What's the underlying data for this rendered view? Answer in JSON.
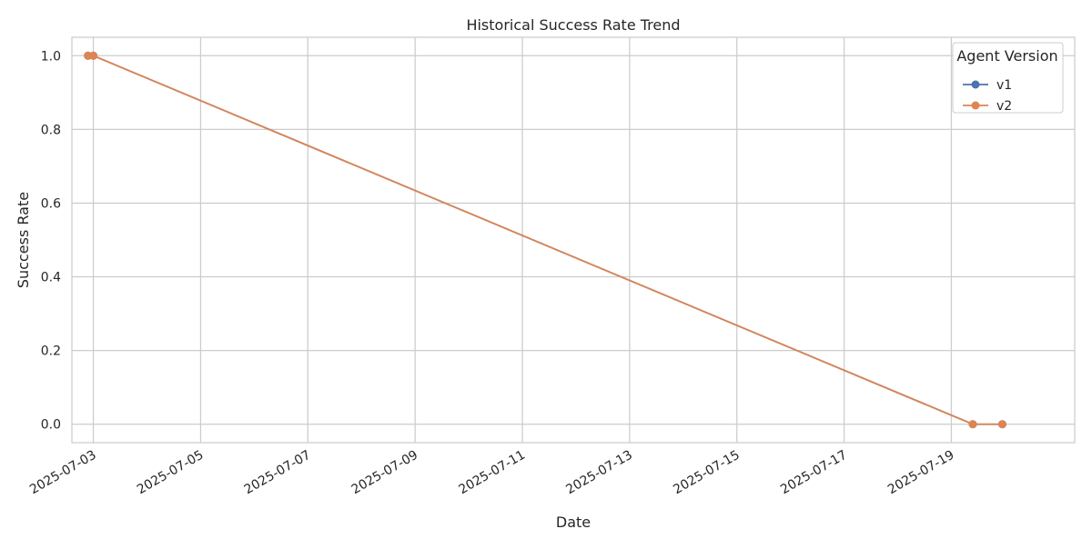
{
  "chart_data": {
    "type": "line",
    "title": "Historical Success Rate Trend",
    "xlabel": "Date",
    "ylabel": "Success Rate",
    "x_axis_type": "date",
    "xlim": [
      "2025-07-02T14:24",
      "2025-07-21T07:12"
    ],
    "ylim": [
      -0.05,
      1.05
    ],
    "x_ticks": [
      "2025-07-03",
      "2025-07-05",
      "2025-07-07",
      "2025-07-09",
      "2025-07-11",
      "2025-07-13",
      "2025-07-15",
      "2025-07-17",
      "2025-07-19"
    ],
    "y_ticks": [
      "0.0",
      "0.2",
      "0.4",
      "0.6",
      "0.8",
      "1.0"
    ],
    "grid": true,
    "legend": {
      "title": "Agent Version",
      "placement": "top-right"
    },
    "series": [
      {
        "name": "v1",
        "color": "#4c72b0",
        "points": [
          {
            "x": "2025-07-02T21:36",
            "y": 1.0
          },
          {
            "x": "2025-07-03T00:00",
            "y": 1.0
          },
          {
            "x": "2025-07-19T09:36",
            "y": 0.0
          },
          {
            "x": "2025-07-19T22:48",
            "y": 0.0
          }
        ]
      },
      {
        "name": "v2",
        "color": "#dd8452",
        "points": [
          {
            "x": "2025-07-02T21:36",
            "y": 1.0
          },
          {
            "x": "2025-07-03T00:00",
            "y": 1.0
          },
          {
            "x": "2025-07-19T09:36",
            "y": 0.0
          },
          {
            "x": "2025-07-19T22:48",
            "y": 0.0
          }
        ]
      }
    ]
  }
}
